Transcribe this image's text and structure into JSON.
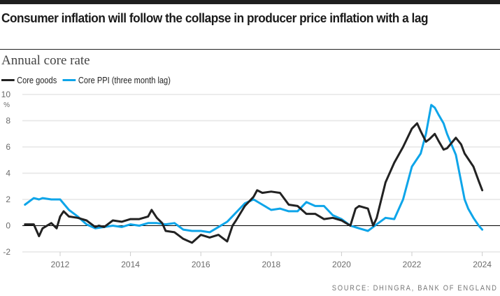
{
  "header": {
    "title": "Consumer inflation will follow the collapse in producer price inflation with a lag",
    "subtitle": "Annual core rate",
    "source": "SOURCE: DHINGRA, BANK OF ENGLAND"
  },
  "colors": {
    "core_goods": "#222222",
    "core_ppi": "#0ea5e9",
    "grid": "#e6e6e6",
    "zero_line": "#000000"
  },
  "chart_data": {
    "type": "line",
    "title": "Consumer inflation will follow the collapse in producer price inflation with a lag",
    "subtitle": "Annual core rate",
    "xlabel": "",
    "ylabel": "%",
    "ylim": [
      -2,
      10
    ],
    "xlim": [
      2010.8,
      2024.4
    ],
    "yticks": [
      -2,
      0,
      2,
      4,
      6,
      8,
      10
    ],
    "xticks": [
      2012,
      2014,
      2016,
      2018,
      2020,
      2022,
      2024
    ],
    "ytick_labels": [
      "-2",
      "0",
      "2",
      "4",
      "6",
      "8",
      "10"
    ],
    "xtick_labels": [
      "2012",
      "2014",
      "2016",
      "2018",
      "2020",
      "2022",
      "2024"
    ],
    "unit_label": "%",
    "grid": true,
    "legend_position": "top-left",
    "series": [
      {
        "name": "Core goods",
        "color": "#222222",
        "x": [
          2011.0,
          2011.25,
          2011.4,
          2011.5,
          2011.75,
          2011.9,
          2012.0,
          2012.1,
          2012.25,
          2012.5,
          2012.75,
          2013.0,
          2013.1,
          2013.25,
          2013.5,
          2013.75,
          2014.0,
          2014.25,
          2014.5,
          2014.6,
          2014.75,
          2014.9,
          2015.0,
          2015.25,
          2015.5,
          2015.75,
          2016.0,
          2016.25,
          2016.5,
          2016.6,
          2016.75,
          2016.9,
          2017.0,
          2017.25,
          2017.5,
          2017.6,
          2017.75,
          2018.0,
          2018.25,
          2018.5,
          2018.75,
          2019.0,
          2019.25,
          2019.5,
          2019.75,
          2020.0,
          2020.25,
          2020.4,
          2020.5,
          2020.75,
          2020.9,
          2021.0,
          2021.25,
          2021.5,
          2021.75,
          2022.0,
          2022.15,
          2022.25,
          2022.4,
          2022.5,
          2022.65,
          2022.75,
          2022.9,
          2023.0,
          2023.25,
          2023.4,
          2023.5,
          2023.75,
          2023.9,
          2024.0
        ],
        "values": [
          0.1,
          0.1,
          -0.8,
          -0.2,
          0.2,
          -0.2,
          0.7,
          1.1,
          0.7,
          0.6,
          0.4,
          -0.1,
          0.0,
          -0.1,
          0.4,
          0.3,
          0.5,
          0.5,
          0.7,
          1.2,
          0.6,
          0.2,
          -0.4,
          -0.5,
          -1.0,
          -1.3,
          -0.7,
          -0.9,
          -0.7,
          -0.9,
          -1.2,
          0.0,
          0.4,
          1.5,
          2.2,
          2.7,
          2.5,
          2.6,
          2.5,
          1.6,
          1.5,
          0.9,
          0.9,
          0.5,
          0.6,
          0.4,
          0.0,
          1.3,
          1.5,
          1.3,
          0.0,
          0.6,
          3.3,
          4.8,
          6.0,
          7.4,
          7.8,
          7.2,
          6.4,
          6.6,
          7.0,
          6.5,
          5.8,
          5.9,
          6.7,
          6.2,
          5.5,
          4.5,
          3.4,
          2.7
        ]
      },
      {
        "name": "Core PPI (three month lag)",
        "color": "#0ea5e9",
        "x": [
          2011.0,
          2011.25,
          2011.4,
          2011.5,
          2011.75,
          2012.0,
          2012.25,
          2012.5,
          2012.75,
          2013.0,
          2013.25,
          2013.5,
          2013.75,
          2014.0,
          2014.25,
          2014.5,
          2014.75,
          2015.0,
          2015.25,
          2015.5,
          2015.75,
          2016.0,
          2016.25,
          2016.5,
          2016.75,
          2017.0,
          2017.25,
          2017.5,
          2017.75,
          2018.0,
          2018.25,
          2018.5,
          2018.75,
          2019.0,
          2019.25,
          2019.5,
          2019.75,
          2020.0,
          2020.25,
          2020.5,
          2020.75,
          2021.0,
          2021.25,
          2021.5,
          2021.75,
          2022.0,
          2022.25,
          2022.4,
          2022.55,
          2022.65,
          2022.75,
          2022.9,
          2023.0,
          2023.25,
          2023.5,
          2023.6,
          2023.75,
          2023.9,
          2024.0
        ],
        "values": [
          1.6,
          2.1,
          2.0,
          2.1,
          2.0,
          2.0,
          1.2,
          0.7,
          0.1,
          -0.2,
          -0.1,
          0.0,
          -0.1,
          0.1,
          0.0,
          0.2,
          0.2,
          0.1,
          0.2,
          -0.3,
          -0.4,
          -0.4,
          -0.5,
          -0.1,
          0.3,
          1.0,
          1.7,
          2.0,
          1.6,
          1.2,
          1.3,
          1.1,
          1.1,
          1.8,
          1.5,
          1.5,
          0.8,
          0.5,
          0.0,
          -0.2,
          -0.4,
          0.1,
          0.6,
          0.5,
          2.0,
          4.5,
          5.5,
          7.0,
          9.2,
          9.0,
          8.5,
          7.8,
          7.0,
          5.4,
          2.0,
          1.3,
          0.6,
          0.0,
          -0.3
        ]
      }
    ]
  }
}
